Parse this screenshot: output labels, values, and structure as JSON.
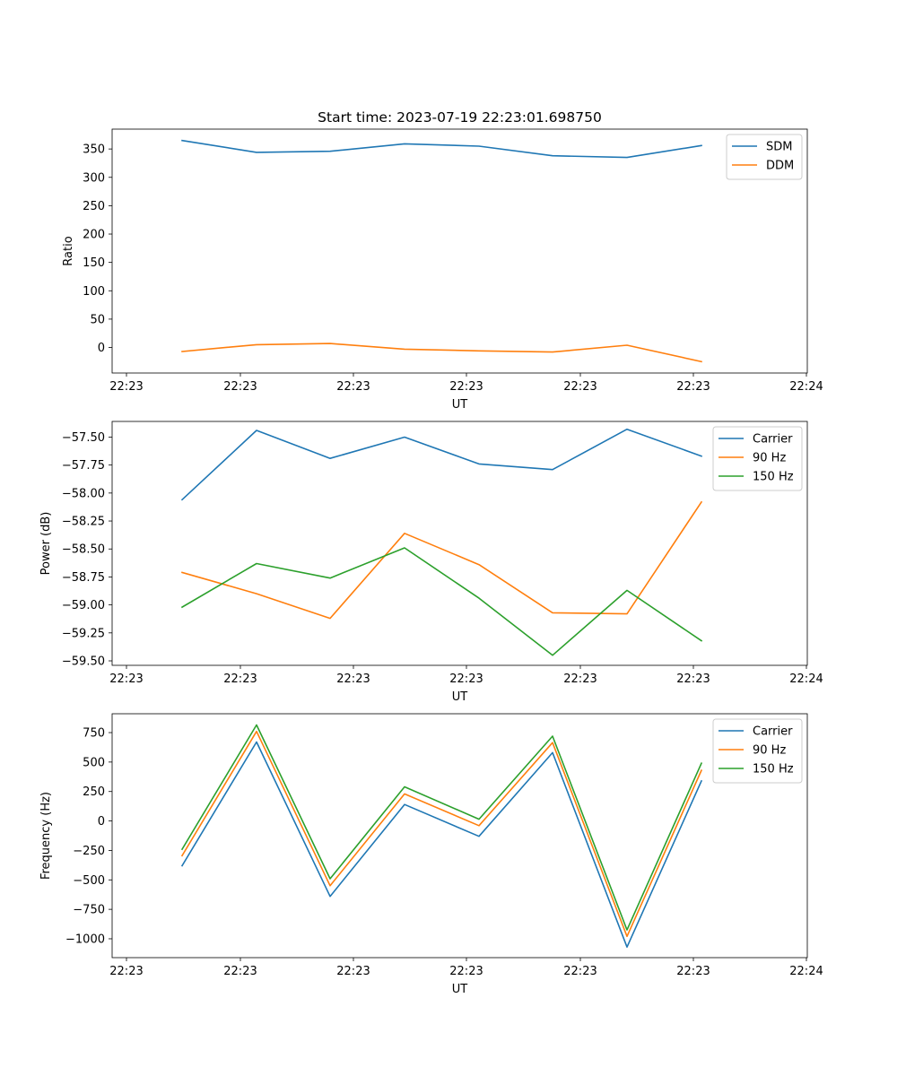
{
  "title": "Start time: 2023-07-19 22:23:01.698750",
  "chart_data": [
    {
      "type": "line",
      "x_tick_labels": [
        "22:23",
        "22:23",
        "22:23",
        "22:23",
        "22:23",
        "22:23",
        "22:24"
      ],
      "xlabel": "UT",
      "ylabel": "Ratio",
      "ylim": [
        -45,
        385
      ],
      "yticks": [
        0,
        50,
        100,
        150,
        200,
        250,
        300,
        350
      ],
      "ytick_labels": [
        "0",
        "50",
        "100",
        "150",
        "200",
        "250",
        "300",
        "350"
      ],
      "legend_position": "top-right",
      "series": [
        {
          "name": "SDM",
          "color": "#1f77b4",
          "values": [
            365,
            344,
            346,
            359,
            355,
            338,
            335,
            356
          ]
        },
        {
          "name": "DDM",
          "color": "#ff7f0e",
          "values": [
            -7,
            5,
            7,
            -3,
            -6,
            -8,
            4,
            -25
          ]
        }
      ]
    },
    {
      "type": "line",
      "x_tick_labels": [
        "22:23",
        "22:23",
        "22:23",
        "22:23",
        "22:23",
        "22:23",
        "22:24"
      ],
      "xlabel": "UT",
      "ylabel": "Power (dB)",
      "ylim": [
        -59.54,
        -57.36
      ],
      "yticks": [
        -57.5,
        -57.75,
        -58.0,
        -58.25,
        -58.5,
        -58.75,
        -59.0,
        -59.25,
        -59.5
      ],
      "ytick_labels": [
        "−57.50",
        "−57.75",
        "−58.00",
        "−58.25",
        "−58.50",
        "−58.75",
        "−59.00",
        "−59.25",
        "−59.50"
      ],
      "legend_position": "top-right",
      "series": [
        {
          "name": "Carrier",
          "color": "#1f77b4",
          "values": [
            -58.06,
            -57.44,
            -57.69,
            -57.5,
            -57.74,
            -57.79,
            -57.43,
            -57.67
          ]
        },
        {
          "name": "90 Hz",
          "color": "#ff7f0e",
          "values": [
            -58.71,
            -58.9,
            -59.12,
            -58.36,
            -58.64,
            -59.07,
            -59.08,
            -58.08
          ]
        },
        {
          "name": "150 Hz",
          "color": "#2ca02c",
          "values": [
            -59.02,
            -58.63,
            -58.76,
            -58.49,
            -58.94,
            -59.45,
            -58.87,
            -59.32
          ]
        }
      ]
    },
    {
      "type": "line",
      "x_tick_labels": [
        "22:23",
        "22:23",
        "22:23",
        "22:23",
        "22:23",
        "22:23",
        "22:24"
      ],
      "xlabel": "UT",
      "ylabel": "Frequency (Hz)",
      "ylim": [
        -1160,
        910
      ],
      "yticks": [
        750,
        500,
        250,
        0,
        -250,
        -500,
        -750,
        -1000
      ],
      "ytick_labels": [
        "750",
        "500",
        "250",
        "0",
        "−250",
        "−500",
        "−750",
        "−1000"
      ],
      "legend_position": "top-right",
      "series": [
        {
          "name": "Carrier",
          "color": "#1f77b4",
          "values": [
            -380,
            670,
            -640,
            140,
            -130,
            580,
            -1070,
            340
          ]
        },
        {
          "name": "90 Hz",
          "color": "#ff7f0e",
          "values": [
            -295,
            760,
            -550,
            230,
            -40,
            665,
            -980,
            430
          ]
        },
        {
          "name": "150 Hz",
          "color": "#2ca02c",
          "values": [
            -240,
            815,
            -490,
            290,
            15,
            720,
            -925,
            490
          ]
        }
      ]
    }
  ]
}
